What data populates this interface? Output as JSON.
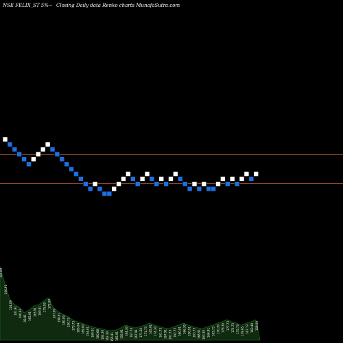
{
  "header": {
    "left": "NSE FELIX_ST 5%~",
    "right": "Closing Daily data  Renko  charts MunafaSutra.com"
  },
  "colors": {
    "background": "#000000",
    "up_brick": "#ffffff",
    "down_brick": "#1e6fe0",
    "brick_outline": "#000000",
    "level_line": "#a0522d",
    "volume_fill": "#0f2a0f",
    "volume_stroke": "#1e7a1e"
  },
  "chart_data": {
    "type": "renko",
    "brick_step": 1,
    "bricks": [
      {
        "level": 11,
        "dir": "up"
      },
      {
        "level": 10,
        "dir": "down"
      },
      {
        "level": 9,
        "dir": "down"
      },
      {
        "level": 8,
        "dir": "down"
      },
      {
        "level": 7,
        "dir": "down"
      },
      {
        "level": 6,
        "dir": "down"
      },
      {
        "level": 7,
        "dir": "up"
      },
      {
        "level": 8,
        "dir": "up"
      },
      {
        "level": 9,
        "dir": "up"
      },
      {
        "level": 10,
        "dir": "up"
      },
      {
        "level": 9,
        "dir": "down"
      },
      {
        "level": 8,
        "dir": "down"
      },
      {
        "level": 7,
        "dir": "down"
      },
      {
        "level": 6,
        "dir": "down"
      },
      {
        "level": 5,
        "dir": "down"
      },
      {
        "level": 4,
        "dir": "down"
      },
      {
        "level": 3,
        "dir": "down"
      },
      {
        "level": 2,
        "dir": "down"
      },
      {
        "level": 1,
        "dir": "down"
      },
      {
        "level": 2,
        "dir": "up"
      },
      {
        "level": 1,
        "dir": "down"
      },
      {
        "level": 0,
        "dir": "down"
      },
      {
        "level": 0,
        "dir": "down"
      },
      {
        "level": 1,
        "dir": "up"
      },
      {
        "level": 2,
        "dir": "up"
      },
      {
        "level": 3,
        "dir": "up"
      },
      {
        "level": 4,
        "dir": "up"
      },
      {
        "level": 3,
        "dir": "down"
      },
      {
        "level": 2,
        "dir": "down"
      },
      {
        "level": 3,
        "dir": "up"
      },
      {
        "level": 4,
        "dir": "up"
      },
      {
        "level": 3,
        "dir": "down"
      },
      {
        "level": 2,
        "dir": "down"
      },
      {
        "level": 3,
        "dir": "up"
      },
      {
        "level": 2,
        "dir": "down"
      },
      {
        "level": 3,
        "dir": "up"
      },
      {
        "level": 4,
        "dir": "up"
      },
      {
        "level": 3,
        "dir": "down"
      },
      {
        "level": 2,
        "dir": "down"
      },
      {
        "level": 1,
        "dir": "down"
      },
      {
        "level": 2,
        "dir": "up"
      },
      {
        "level": 1,
        "dir": "down"
      },
      {
        "level": 2,
        "dir": "up"
      },
      {
        "level": 1,
        "dir": "down"
      },
      {
        "level": 1,
        "dir": "down"
      },
      {
        "level": 2,
        "dir": "up"
      },
      {
        "level": 3,
        "dir": "up"
      },
      {
        "level": 2,
        "dir": "down"
      },
      {
        "level": 3,
        "dir": "up"
      },
      {
        "level": 2,
        "dir": "down"
      },
      {
        "level": 3,
        "dir": "up"
      },
      {
        "level": 4,
        "dir": "up"
      },
      {
        "level": 3,
        "dir": "down"
      },
      {
        "level": 4,
        "dir": "up"
      }
    ],
    "level_lines": [
      8,
      2
    ],
    "volume": {
      "values": [
        107,
        83,
        60,
        52,
        48,
        40,
        44,
        50,
        52,
        57,
        62,
        48,
        42,
        38,
        35,
        30,
        27,
        25,
        22,
        20,
        18,
        17,
        15,
        14,
        15,
        18,
        22,
        20,
        18,
        20,
        22,
        25,
        22,
        20,
        18,
        17,
        20,
        22,
        25,
        22,
        20,
        18,
        17,
        20,
        22,
        25,
        27,
        30,
        27,
        25,
        22,
        25,
        27,
        30
      ],
      "labels": [
        "107.09",
        "100.91",
        "124.09",
        "101.91",
        "100.91",
        "93.91",
        "165.91",
        "163.91",
        "160.91",
        "175.09",
        "172.09",
        "167.00",
        "198.91",
        "180.09",
        "150.73",
        "173.73",
        "165.04",
        "169.00",
        "154.91",
        "160.91",
        "160.68",
        "164.30",
        "162.30",
        "155.91",
        "165.91",
        "155.91",
        "164.30",
        "167.74",
        "167.91",
        "171.30",
        "171.73",
        "165.91",
        "174.30",
        "161.73",
        "167.91",
        "161.73",
        "162.73",
        "160.91",
        "166.30",
        "150.91",
        "163.73",
        "168.91",
        "163.30",
        "166.91",
        "163.73",
        "170.30",
        "178.30",
        "177.73",
        "171.73",
        "175.73",
        "179.95",
        "167.73",
        "163.40",
        "158.00"
      ]
    }
  }
}
